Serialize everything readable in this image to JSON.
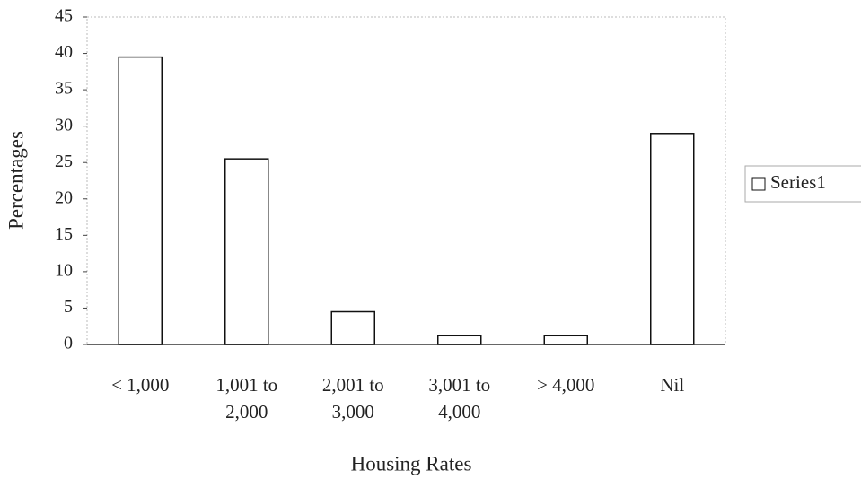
{
  "chart_data": {
    "type": "bar",
    "x_label": "Housing Rates",
    "y_label": "Percentages",
    "categories": [
      "< 1,000",
      "1,001 to 2,000",
      "2,001 to 3,000",
      "3,001 to 4,000",
      "> 4,000",
      "Nil"
    ],
    "series": [
      {
        "name": "Series1",
        "color": "#ffffff",
        "values": [
          39.5,
          25.5,
          4.5,
          1.2,
          1.2,
          29
        ]
      }
    ],
    "ylim": [
      0,
      45
    ],
    "yticks": [
      0,
      5,
      10,
      15,
      20,
      25,
      30,
      35,
      40,
      45
    ],
    "grid": false,
    "legend": "right"
  }
}
